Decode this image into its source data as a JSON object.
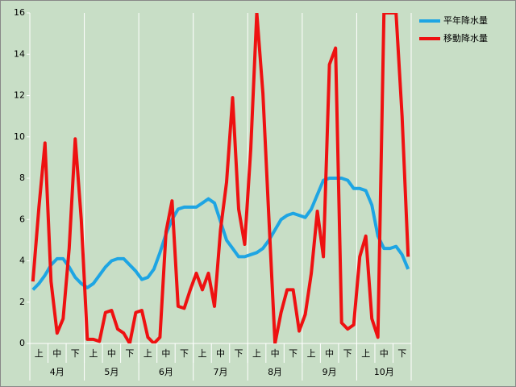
{
  "chart_data": {
    "type": "line",
    "categories": [
      null,
      "上",
      null,
      null,
      "中",
      null,
      null,
      "下",
      null,
      null,
      "上",
      null,
      null,
      "中",
      null,
      null,
      "下",
      null,
      null,
      "上",
      null,
      null,
      "中",
      null,
      null,
      "下",
      null,
      null,
      "上",
      null,
      null,
      "中",
      null,
      null,
      "下",
      null,
      null,
      "上",
      null,
      null,
      "中",
      null,
      null,
      "下",
      null,
      null,
      "上",
      null,
      null,
      "中",
      null,
      null,
      "下",
      null,
      null,
      "上",
      null,
      null,
      "中",
      null,
      null,
      "下",
      null
    ],
    "months": [
      "4月",
      "5月",
      "6月",
      "7月",
      "8月",
      "9月",
      "10月"
    ],
    "series": [
      {
        "name": "平年降水量",
        "color": "#1ea5e3",
        "values": [
          2.6,
          2.9,
          3.3,
          3.8,
          4.1,
          4.1,
          3.7,
          3.2,
          2.9,
          2.7,
          2.9,
          3.3,
          3.7,
          4.0,
          4.1,
          4.1,
          3.8,
          3.5,
          3.1,
          3.2,
          3.6,
          4.4,
          5.3,
          6.0,
          6.5,
          6.6,
          6.6,
          6.6,
          6.8,
          7.0,
          6.8,
          5.9,
          5.0,
          4.6,
          4.2,
          4.2,
          4.3,
          4.4,
          4.6,
          5.0,
          5.5,
          6.0,
          6.2,
          6.3,
          6.2,
          6.1,
          6.5,
          7.2,
          7.9,
          8.0,
          8.0,
          8.0,
          7.9,
          7.5,
          7.5,
          7.4,
          6.7,
          5.2,
          4.6,
          4.6,
          4.7,
          4.3,
          3.6
        ]
      },
      {
        "name": "移動降水量",
        "color": "#ee1111",
        "values": [
          3.0,
          6.6,
          9.7,
          3.0,
          0.5,
          1.2,
          4.6,
          9.9,
          6.0,
          0.2,
          0.2,
          0.1,
          1.5,
          1.6,
          0.7,
          0.5,
          0.0,
          1.5,
          1.6,
          0.3,
          0.0,
          0.3,
          5.4,
          6.9,
          1.8,
          1.7,
          2.6,
          3.4,
          2.6,
          3.4,
          1.8,
          5.5,
          7.8,
          11.9,
          6.5,
          4.8,
          9.4,
          16,
          12.1,
          6.0,
          0.0,
          1.5,
          2.6,
          2.6,
          0.6,
          1.4,
          3.4,
          6.4,
          4.2,
          13.5,
          14.3,
          1.0,
          0.7,
          0.9,
          4.2,
          5.2,
          1.2,
          0.3,
          16,
          16,
          16,
          11,
          4.2
        ]
      }
    ],
    "ylim": [
      0,
      16
    ],
    "yticks": [
      0,
      2,
      4,
      6,
      8,
      10,
      12,
      14,
      16
    ]
  }
}
